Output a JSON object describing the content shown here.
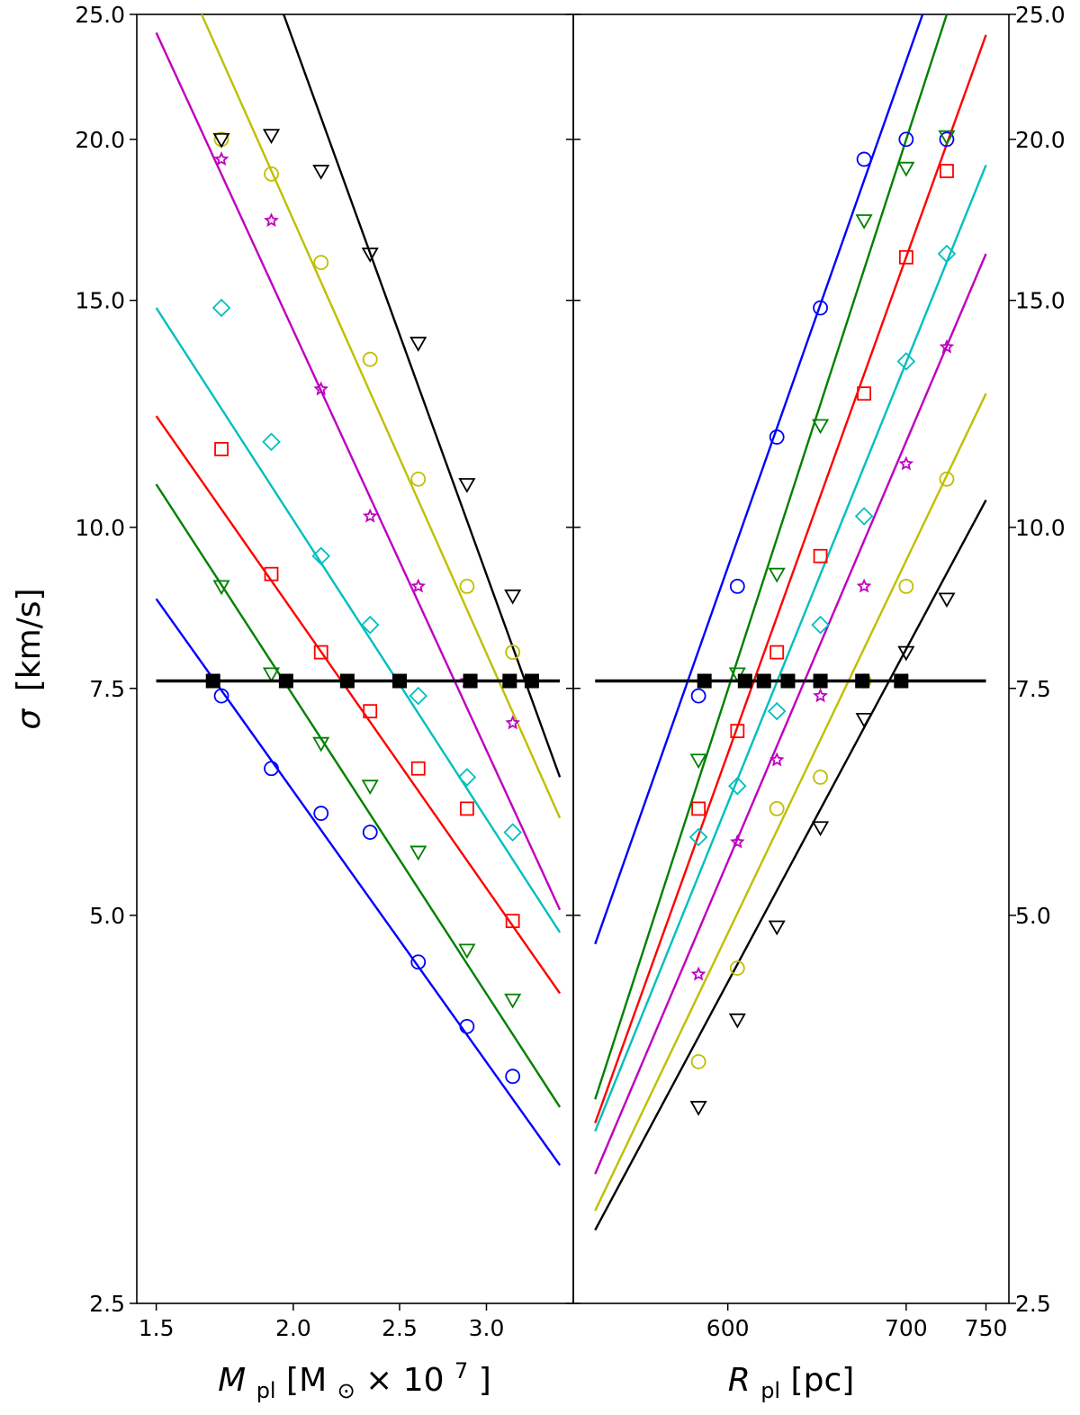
{
  "chart_data": {
    "type": "scatter",
    "y_axis": {
      "label_symbol": "σ",
      "label_unit": "[km/s]",
      "scale": "log",
      "range": [
        2.5,
        25.0
      ],
      "ticks": [
        "2.5",
        "5.0",
        "7.5",
        "10.0",
        "15.0",
        "20.0",
        "25.0"
      ],
      "tick_values": [
        2.5,
        5.0,
        7.5,
        10.0,
        15.0,
        20.0,
        25.0
      ]
    },
    "reference_line": {
      "y": 7.6,
      "color": "#000000"
    },
    "panels": [
      {
        "name": "left",
        "x_axis": {
          "label_var": "M",
          "label_sub": "pl",
          "label_unit_pre": " [M",
          "label_unit_sub": "⊙",
          "label_unit_post": " × 10",
          "label_unit_sup": "7",
          "label_unit_end": "]",
          "scale": "log",
          "range": [
            1.44,
            3.6
          ],
          "ticks": [
            "1.5",
            "2.0",
            "2.5",
            "3.0"
          ],
          "tick_values": [
            1.5,
            2.0,
            2.5,
            3.0
          ]
        },
        "series": [
          {
            "color": "#0000ff",
            "marker": "circle",
            "x": [
              1.72,
              1.91,
              2.12,
              2.35,
              2.6,
              2.88,
              3.17
            ],
            "y": [
              7.4,
              6.5,
              6.0,
              5.8,
              4.6,
              4.1,
              3.75
            ],
            "fit_x": [
              1.5,
              3.5
            ],
            "fit_y": [
              8.8,
              3.2
            ]
          },
          {
            "color": "#008000",
            "marker": "triangle_down",
            "x": [
              1.72,
              1.91,
              2.12,
              2.35,
              2.6,
              2.88,
              3.17
            ],
            "y": [
              9.0,
              7.7,
              6.8,
              6.3,
              5.6,
              4.7,
              4.3
            ],
            "fit_x": [
              1.5,
              3.5
            ],
            "fit_y": [
              10.8,
              3.55
            ]
          },
          {
            "color": "#ff0000",
            "marker": "square",
            "x": [
              1.72,
              1.91,
              2.12,
              2.35,
              2.6,
              2.88,
              3.17
            ],
            "y": [
              11.5,
              9.2,
              8.0,
              7.2,
              6.5,
              6.05,
              4.95
            ],
            "fit_x": [
              1.5,
              3.5
            ],
            "fit_y": [
              12.2,
              4.35
            ]
          },
          {
            "color": "#00bfbf",
            "marker": "diamond",
            "x": [
              1.72,
              1.91,
              2.12,
              2.35,
              2.6,
              2.88,
              3.17
            ],
            "y": [
              14.8,
              11.65,
              9.5,
              8.4,
              7.4,
              6.4,
              5.8
            ],
            "fit_x": [
              1.5,
              3.5
            ],
            "fit_y": [
              14.8,
              4.85
            ]
          },
          {
            "color": "#bf00bf",
            "marker": "star",
            "x": [
              1.72,
              1.91,
              2.12,
              2.35,
              2.6,
              2.88,
              3.17
            ],
            "y": [
              19.3,
              17.3,
              12.8,
              10.2,
              9.0,
              7.6,
              7.05
            ],
            "fit_x": [
              1.5,
              3.5
            ],
            "fit_y": [
              24.2,
              5.05
            ]
          },
          {
            "color": "#bfbf00",
            "marker": "circle",
            "x": [
              1.72,
              1.91,
              2.12,
              2.35,
              2.6,
              2.88,
              3.17
            ],
            "y": [
              20.0,
              18.8,
              16.05,
              13.5,
              10.9,
              9.0,
              8.0
            ],
            "fit_x": [
              1.65,
              3.5
            ],
            "fit_y": [
              25.0,
              5.95
            ]
          },
          {
            "color": "#000000",
            "marker": "triangle_down",
            "x": [
              1.72,
              1.91,
              2.12,
              2.35,
              2.6,
              2.88,
              3.17
            ],
            "y": [
              20.0,
              20.15,
              18.9,
              16.3,
              13.9,
              10.8,
              8.85
            ],
            "fit_x": [
              1.96,
              3.5
            ],
            "fit_y": [
              25.0,
              6.4
            ]
          }
        ],
        "crossings_x": [
          1.69,
          1.97,
          2.24,
          2.5,
          2.9,
          3.15,
          3.3
        ]
      },
      {
        "name": "right",
        "x_axis": {
          "label_var": "R",
          "label_sub": "pl",
          "label_unit_pre": " [pc]",
          "scale": "log",
          "range": [
            525,
            765
          ],
          "ticks": [
            "600",
            "700",
            "750"
          ],
          "tick_values": [
            600,
            700,
            750
          ]
        },
        "series": [
          {
            "color": "#0000ff",
            "marker": "circle",
            "x": [
              585,
              605,
              626,
              650,
              675,
              700,
              725
            ],
            "y": [
              7.4,
              9.0,
              11.75,
              14.8,
              19.3,
              20.0,
              20.0
            ],
            "fit_x": [
              535,
              710
            ],
            "fit_y": [
              4.75,
              25.0
            ]
          },
          {
            "color": "#008000",
            "marker": "triangle_down",
            "x": [
              585,
              605,
              626,
              650,
              675,
              700,
              725
            ],
            "y": [
              6.6,
              7.7,
              9.2,
              12.0,
              17.3,
              19.0,
              20.1
            ],
            "fit_x": [
              535,
              725
            ],
            "fit_y": [
              3.6,
              25.0
            ]
          },
          {
            "color": "#ff0000",
            "marker": "square",
            "x": [
              585,
              605,
              626,
              650,
              675,
              700,
              725
            ],
            "y": [
              6.05,
              6.95,
              8.0,
              9.5,
              12.7,
              16.2,
              18.9
            ],
            "fit_x": [
              535,
              750
            ],
            "fit_y": [
              3.45,
              24.1
            ]
          },
          {
            "color": "#00bfbf",
            "marker": "diamond",
            "x": [
              585,
              605,
              626,
              650,
              675,
              700,
              725
            ],
            "y": [
              5.75,
              6.3,
              7.2,
              8.4,
              10.2,
              13.45,
              16.3
            ],
            "fit_x": [
              535,
              750
            ],
            "fit_y": [
              3.4,
              19.1
            ]
          },
          {
            "color": "#bf00bf",
            "marker": "star",
            "x": [
              585,
              605,
              626,
              650,
              675,
              700,
              725
            ],
            "y": [
              4.5,
              5.7,
              6.6,
              7.4,
              9.0,
              11.2,
              13.8
            ],
            "fit_x": [
              535,
              750
            ],
            "fit_y": [
              3.15,
              16.3
            ]
          },
          {
            "color": "#bfbf00",
            "marker": "circle",
            "x": [
              585,
              605,
              626,
              650,
              675,
              700,
              725
            ],
            "y": [
              3.85,
              4.55,
              6.05,
              6.4,
              7.6,
              9.0,
              10.9
            ],
            "fit_x": [
              535,
              750
            ],
            "fit_y": [
              2.95,
              12.7
            ]
          },
          {
            "color": "#000000",
            "marker": "triangle_down",
            "x": [
              585,
              605,
              626,
              650,
              675,
              700,
              725
            ],
            "y": [
              3.55,
              4.15,
              4.9,
              5.85,
              7.1,
              8.0,
              8.8
            ],
            "fit_x": [
              535,
              750
            ],
            "fit_y": [
              2.85,
              10.5
            ]
          }
        ],
        "crossings_x": [
          588,
          609,
          619,
          632,
          650,
          674,
          697
        ]
      }
    ]
  }
}
